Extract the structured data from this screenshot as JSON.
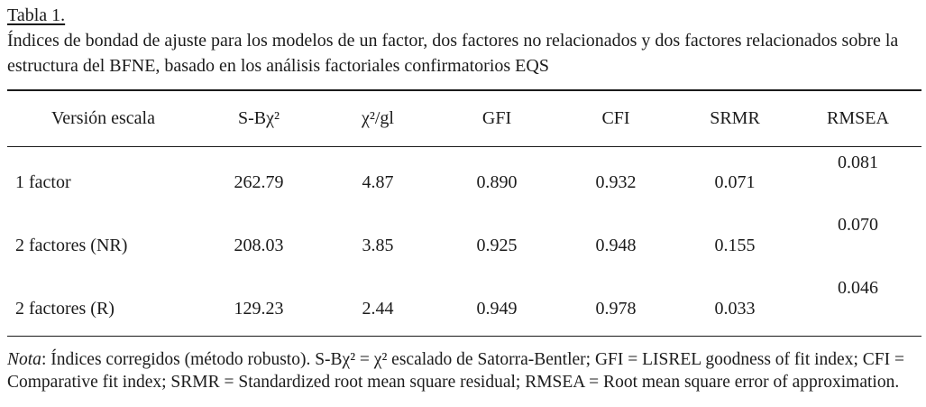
{
  "page": {
    "background": "#ffffff",
    "text_color": "#1b1b1b",
    "rule_color": "#1b1b1b"
  },
  "title": "Tabla 1.",
  "caption": "Índices de bondad de ajuste para los modelos de un factor, dos factores no relacionados y dos factores relacionados sobre la estructura del BFNE, basado en los análisis factoriales confirmatorios EQS",
  "table": {
    "columns": [
      "Versión escala",
      "S-Bχ²",
      "χ²/gl",
      "GFI",
      "CFI",
      "SRMR",
      "RMSEA"
    ],
    "rows": [
      {
        "label": "1 factor",
        "values": [
          "262.79",
          "4.87",
          "0.890",
          "0.932",
          "0.071",
          "0.081"
        ]
      },
      {
        "label": "2 factores (NR)",
        "values": [
          "208.03",
          "3.85",
          "0.925",
          "0.948",
          "0.155",
          "0.070"
        ]
      },
      {
        "label": "2 factores (R)",
        "values": [
          "129.23",
          "2.44",
          "0.949",
          "0.978",
          "0.033",
          "0.046"
        ]
      }
    ]
  },
  "note": {
    "label": "Nota",
    "text": ": Índices corregidos (método robusto). S-Bχ² = χ² escalado de Satorra-Bentler; GFI = LISREL goodness of fit index; CFI = Comparative fit index; SRMR = Standardized root mean square residual; RMSEA = Root mean square error of approximation."
  }
}
